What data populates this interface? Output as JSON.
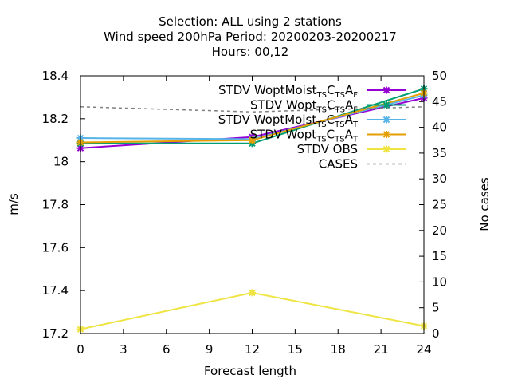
{
  "chart_data": {
    "type": "line",
    "title_lines": [
      "Selection: ALL using     2 stations",
      "Wind speed 200hPa   Period: 20200203-20200217",
      "Hours:  00,12"
    ],
    "xlabel": "Forecast length",
    "ylabel": "m/s",
    "y2label": "No cases",
    "x": [
      0,
      12,
      24
    ],
    "xlim": [
      0,
      24
    ],
    "xticks": [
      "0",
      "3",
      "6",
      "9",
      "12",
      "15",
      "18",
      "21",
      "24"
    ],
    "ylim": [
      17.2,
      18.4
    ],
    "yticks": [
      "17.2",
      "17.4",
      "17.6",
      "17.8",
      "18",
      "18.2",
      "18.4"
    ],
    "y2lim": [
      0,
      50
    ],
    "y2ticks": [
      "0",
      "5",
      "10",
      "15",
      "20",
      "25",
      "30",
      "35",
      "40",
      "45",
      "50"
    ],
    "legend_position": "top-right",
    "grid": false,
    "series": [
      {
        "name_parts": [
          [
            "STDV WoptMoist",
            "n"
          ],
          [
            "TS",
            "s"
          ],
          [
            "C",
            "n"
          ],
          [
            "TS",
            "s"
          ],
          [
            "A",
            "n"
          ],
          [
            "F",
            "s"
          ]
        ],
        "values": [
          18.063,
          18.115,
          18.297
        ],
        "color": "#9400d3",
        "marker": "x",
        "axis": "y1"
      },
      {
        "name_parts": [
          [
            "STDV Wopt",
            "n"
          ],
          [
            "TS",
            "s"
          ],
          [
            "C",
            "n"
          ],
          [
            "TS",
            "s"
          ],
          [
            "A",
            "n"
          ],
          [
            "F",
            "s"
          ]
        ],
        "values": [
          18.085,
          18.085,
          18.34
        ],
        "color": "#009e73",
        "marker": "x",
        "axis": "y1"
      },
      {
        "name_parts": [
          [
            "STDV WoptMoist",
            "n"
          ],
          [
            "TS",
            "s"
          ],
          [
            "C",
            "n"
          ],
          [
            "TS",
            "s"
          ],
          [
            "A",
            "n"
          ],
          [
            "T",
            "s"
          ]
        ],
        "values": [
          18.11,
          18.105,
          18.31
        ],
        "color": "#56b4e9",
        "marker": "x",
        "axis": "y1"
      },
      {
        "name_parts": [
          [
            "STDV Wopt",
            "n"
          ],
          [
            "TS",
            "s"
          ],
          [
            "C",
            "n"
          ],
          [
            "TS",
            "s"
          ],
          [
            "A",
            "n"
          ],
          [
            "T",
            "s"
          ]
        ],
        "values": [
          18.09,
          18.1,
          18.32
        ],
        "color": "#e69f00",
        "marker": "x",
        "axis": "y1"
      },
      {
        "name_parts": [
          [
            "STDV OBS",
            "n"
          ]
        ],
        "values": [
          17.22,
          17.39,
          17.235
        ],
        "color": "#f0e442",
        "marker": "x",
        "axis": "y1"
      },
      {
        "name_parts": [
          [
            "CASES",
            "n"
          ]
        ],
        "values": [
          44,
          43,
          44
        ],
        "color": "#808080",
        "marker": "none",
        "dash": true,
        "axis": "y2"
      }
    ]
  }
}
